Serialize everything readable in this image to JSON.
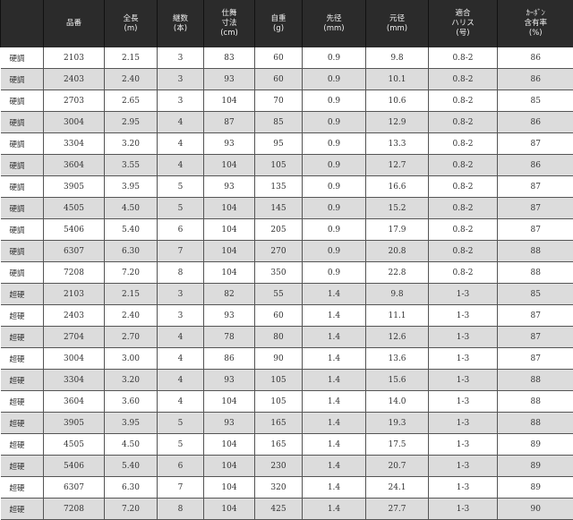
{
  "table": {
    "headers": [
      [
        ""
      ],
      [
        "品番"
      ],
      [
        "全長",
        "(m)"
      ],
      [
        "継数",
        "(本)"
      ],
      [
        "仕舞",
        "寸法",
        "(cm)"
      ],
      [
        "自重",
        "(g)"
      ],
      [
        "先径",
        "(mm)"
      ],
      [
        "元径",
        "(mm)"
      ],
      [
        "適合",
        "ハリス",
        "(号)"
      ],
      [
        "ｶｰﾎﾞﾝ",
        "含有率",
        "(%)"
      ]
    ],
    "rows": [
      [
        "硬調",
        "2103",
        "2.15",
        "3",
        "83",
        "60",
        "0.9",
        "9.8",
        "0.8-2",
        "86"
      ],
      [
        "硬調",
        "2403",
        "2.40",
        "3",
        "93",
        "60",
        "0.9",
        "10.1",
        "0.8-2",
        "86"
      ],
      [
        "硬調",
        "2703",
        "2.65",
        "3",
        "104",
        "70",
        "0.9",
        "10.6",
        "0.8-2",
        "85"
      ],
      [
        "硬調",
        "3004",
        "2.95",
        "4",
        "87",
        "85",
        "0.9",
        "12.9",
        "0.8-2",
        "86"
      ],
      [
        "硬調",
        "3304",
        "3.20",
        "4",
        "93",
        "95",
        "0.9",
        "13.3",
        "0.8-2",
        "87"
      ],
      [
        "硬調",
        "3604",
        "3.55",
        "4",
        "104",
        "105",
        "0.9",
        "12.7",
        "0.8-2",
        "86"
      ],
      [
        "硬調",
        "3905",
        "3.95",
        "5",
        "93",
        "135",
        "0.9",
        "16.6",
        "0.8-2",
        "87"
      ],
      [
        "硬調",
        "4505",
        "4.50",
        "5",
        "104",
        "145",
        "0.9",
        "15.2",
        "0.8-2",
        "87"
      ],
      [
        "硬調",
        "5406",
        "5.40",
        "6",
        "104",
        "205",
        "0.9",
        "17.9",
        "0.8-2",
        "87"
      ],
      [
        "硬調",
        "6307",
        "6.30",
        "7",
        "104",
        "270",
        "0.9",
        "20.8",
        "0.8-2",
        "88"
      ],
      [
        "硬調",
        "7208",
        "7.20",
        "8",
        "104",
        "350",
        "0.9",
        "22.8",
        "0.8-2",
        "88"
      ],
      [
        "超硬",
        "2103",
        "2.15",
        "3",
        "82",
        "55",
        "1.4",
        "9.8",
        "1-3",
        "85"
      ],
      [
        "超硬",
        "2403",
        "2.40",
        "3",
        "93",
        "60",
        "1.4",
        "11.1",
        "1-3",
        "87"
      ],
      [
        "超硬",
        "2704",
        "2.70",
        "4",
        "78",
        "80",
        "1.4",
        "12.6",
        "1-3",
        "87"
      ],
      [
        "超硬",
        "3004",
        "3.00",
        "4",
        "86",
        "90",
        "1.4",
        "13.6",
        "1-3",
        "87"
      ],
      [
        "超硬",
        "3304",
        "3.20",
        "4",
        "93",
        "105",
        "1.4",
        "15.6",
        "1-3",
        "88"
      ],
      [
        "超硬",
        "3604",
        "3.60",
        "4",
        "104",
        "105",
        "1.4",
        "14.0",
        "1-3",
        "88"
      ],
      [
        "超硬",
        "3905",
        "3.95",
        "5",
        "93",
        "165",
        "1.4",
        "19.3",
        "1-3",
        "88"
      ],
      [
        "超硬",
        "4505",
        "4.50",
        "5",
        "104",
        "165",
        "1.4",
        "17.5",
        "1-3",
        "89"
      ],
      [
        "超硬",
        "5406",
        "5.40",
        "6",
        "104",
        "230",
        "1.4",
        "20.7",
        "1-3",
        "89"
      ],
      [
        "超硬",
        "6307",
        "6.30",
        "7",
        "104",
        "320",
        "1.4",
        "24.1",
        "1-3",
        "89"
      ],
      [
        "超硬",
        "7208",
        "7.20",
        "8",
        "104",
        "425",
        "1.4",
        "27.7",
        "1-3",
        "90"
      ]
    ]
  }
}
